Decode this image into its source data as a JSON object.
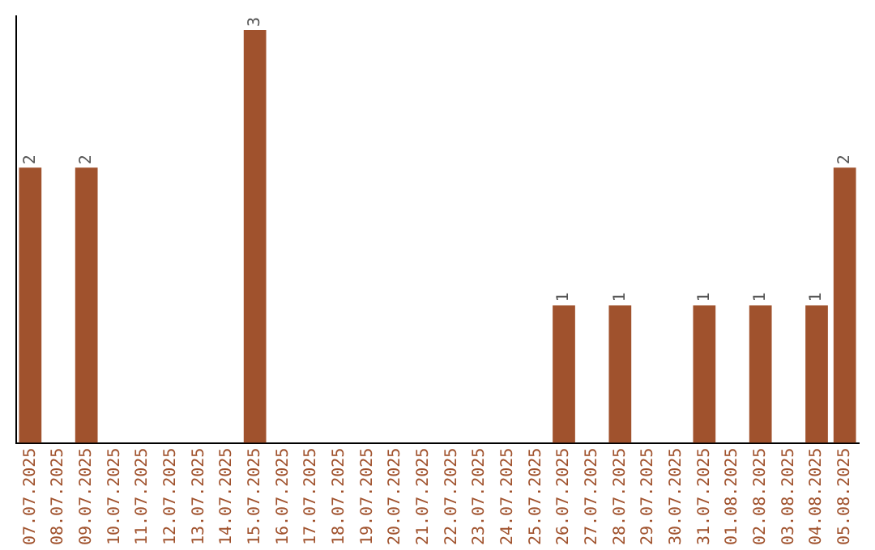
{
  "chart_data": {
    "type": "bar",
    "categories": [
      "07.07.2025",
      "08.07.2025",
      "09.07.2025",
      "10.07.2025",
      "11.07.2025",
      "12.07.2025",
      "13.07.2025",
      "14.07.2025",
      "15.07.2025",
      "16.07.2025",
      "17.07.2025",
      "18.07.2025",
      "19.07.2025",
      "20.07.2025",
      "21.07.2025",
      "22.07.2025",
      "23.07.2025",
      "24.07.2025",
      "25.07.2025",
      "26.07.2025",
      "27.07.2025",
      "28.07.2025",
      "29.07.2025",
      "30.07.2025",
      "31.07.2025",
      "01.08.2025",
      "02.08.2025",
      "03.08.2025",
      "04.08.2025",
      "05.08.2025"
    ],
    "values": [
      2,
      0,
      2,
      0,
      0,
      0,
      0,
      0,
      3,
      0,
      0,
      0,
      0,
      0,
      0,
      0,
      0,
      0,
      0,
      1,
      0,
      1,
      0,
      0,
      1,
      0,
      1,
      0,
      1,
      2
    ],
    "value_labels": [
      "2",
      null,
      "2",
      null,
      null,
      null,
      null,
      null,
      "3",
      null,
      null,
      null,
      null,
      null,
      null,
      null,
      null,
      null,
      null,
      "1",
      null,
      "1",
      null,
      null,
      "1",
      null,
      "1",
      null,
      "1",
      "2"
    ],
    "color": "#a0522d",
    "ylim": [
      0,
      3.1
    ],
    "grid": false,
    "legend": false,
    "tick_labels": "x"
  }
}
